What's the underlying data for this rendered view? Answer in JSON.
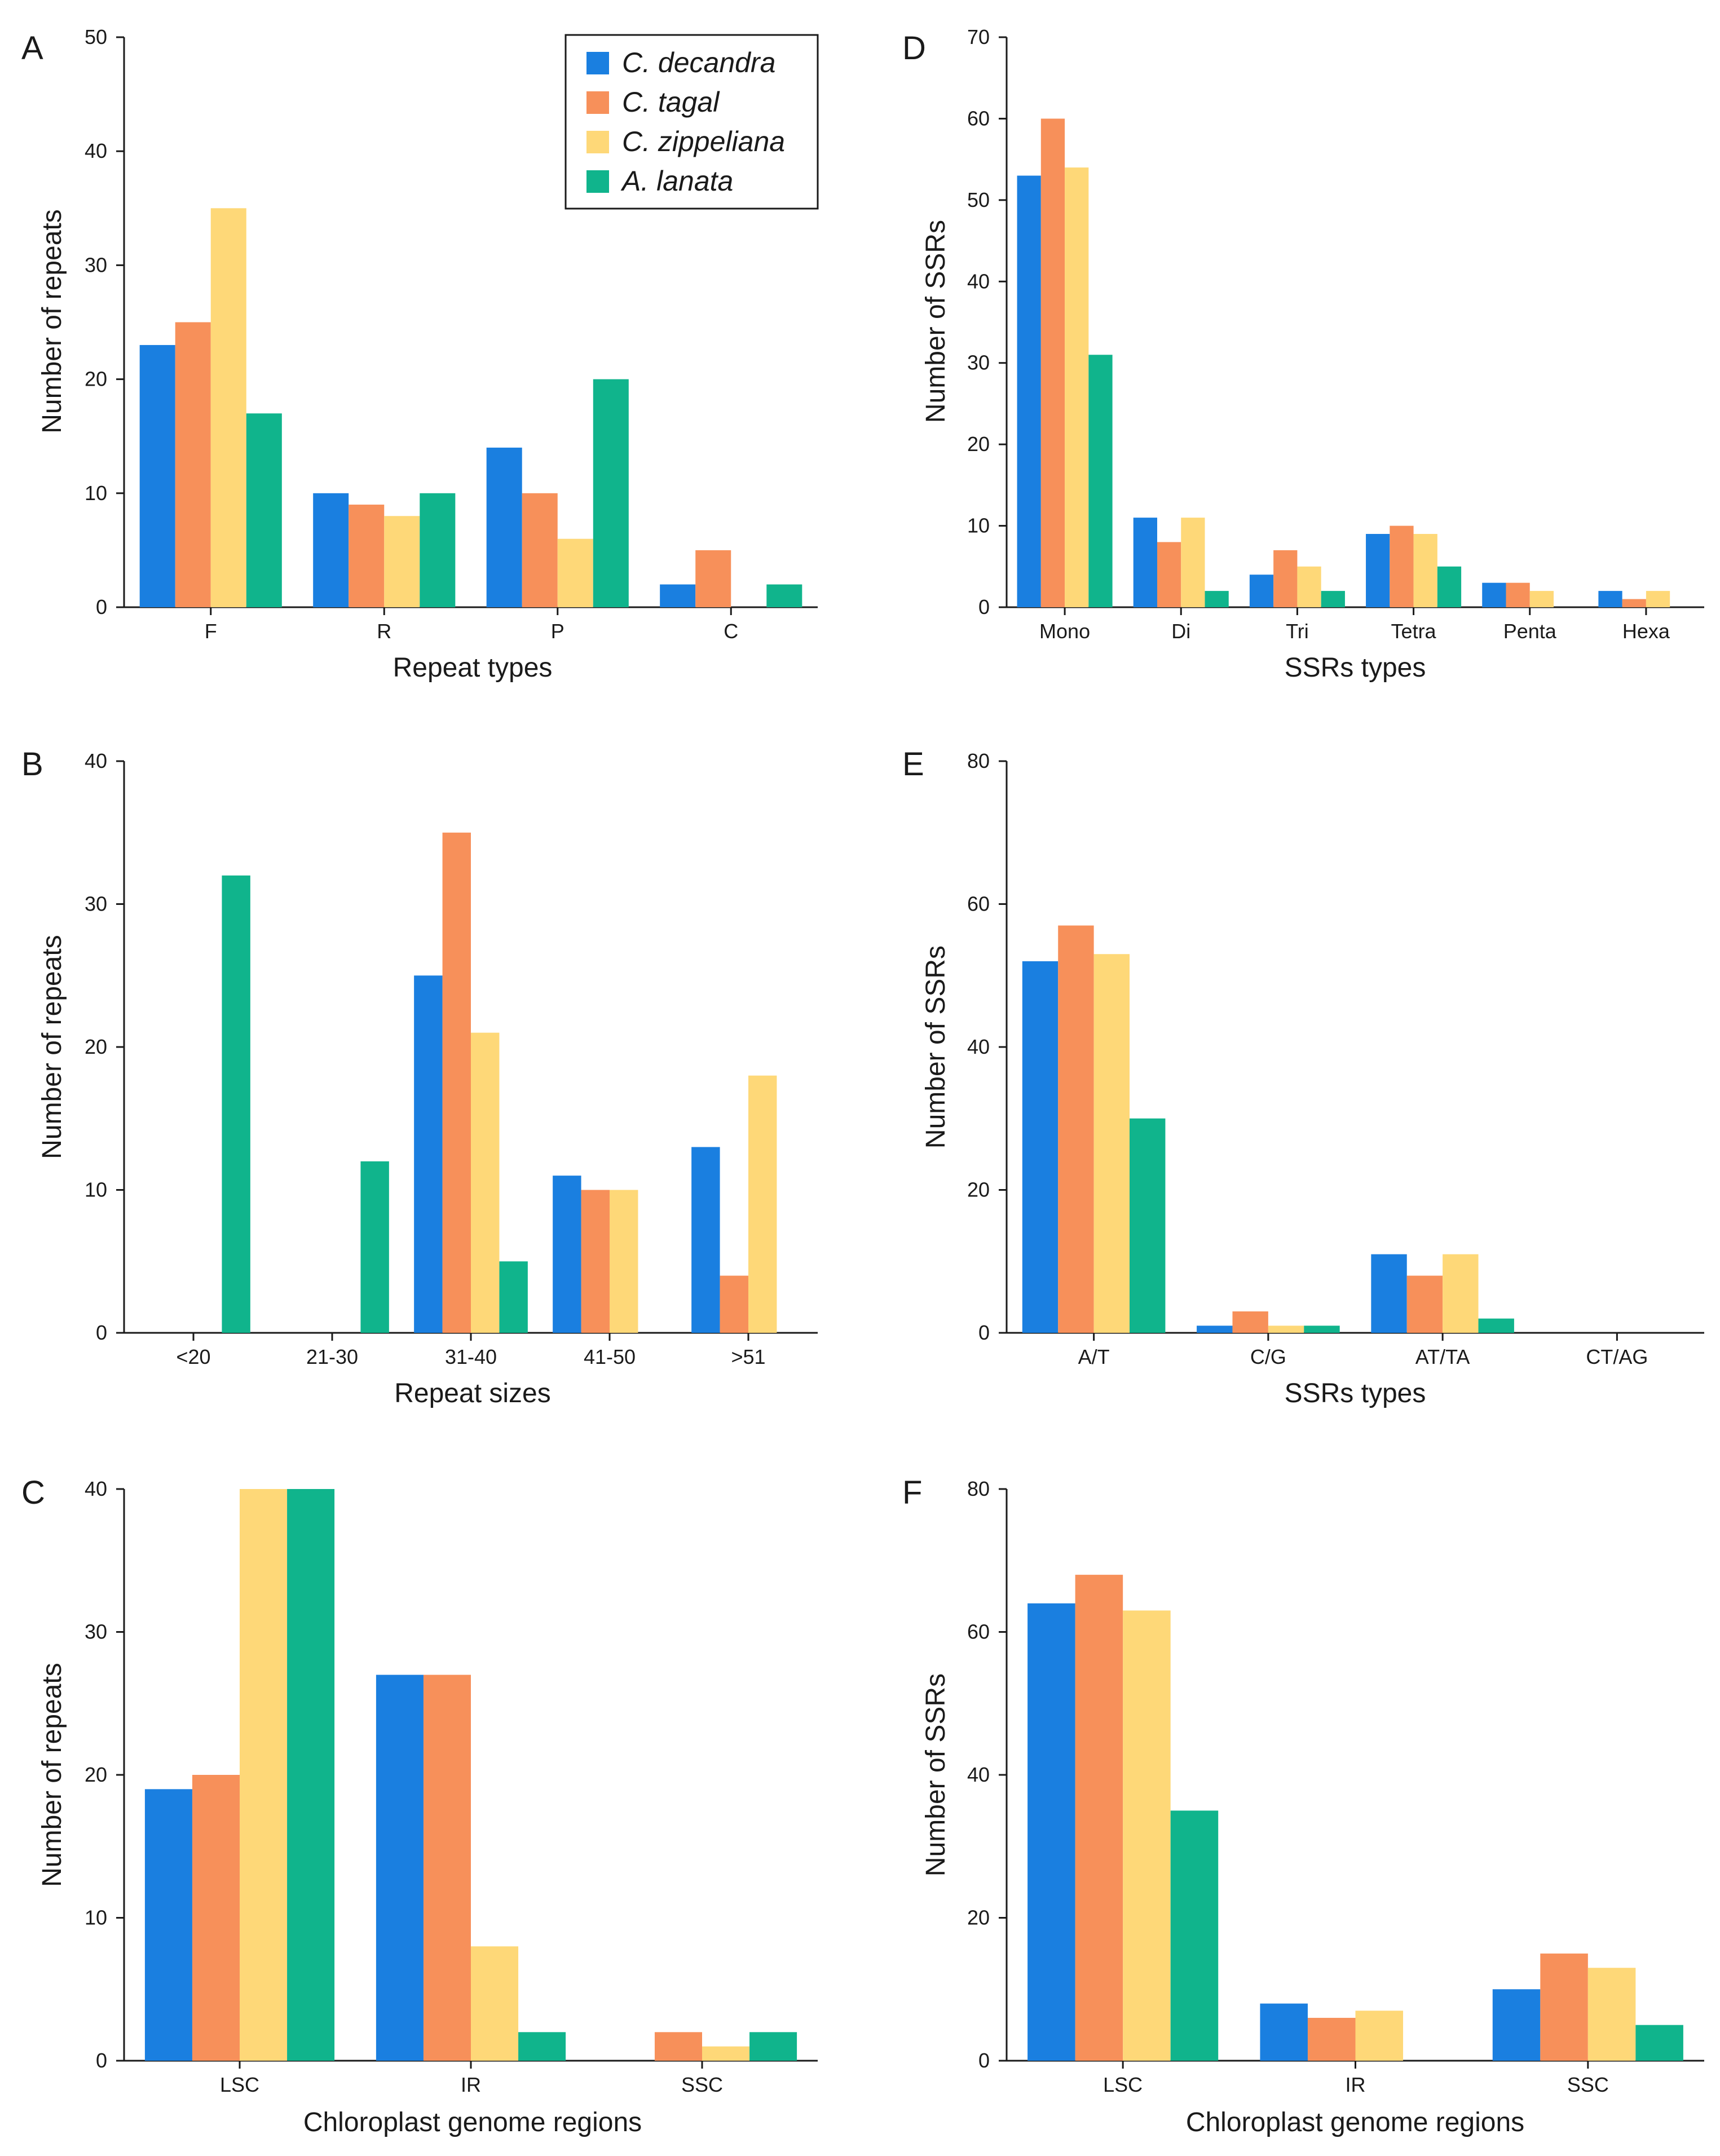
{
  "legend": [
    {
      "name": "C. decandra",
      "color": "#1a7fe0"
    },
    {
      "name": "C. tagal",
      "color": "#f7905a"
    },
    {
      "name": "C. zippeliana",
      "color": "#fed878"
    },
    {
      "name": "A. lanata",
      "color": "#10b48c"
    }
  ],
  "chart_data": [
    {
      "panel": "A",
      "type": "bar",
      "title": "",
      "xlabel": "Repeat types",
      "ylabel": "Number of repeats",
      "categories": [
        "F",
        "R",
        "P",
        "C"
      ],
      "ylim": [
        0,
        50
      ],
      "yticks": [
        "0",
        "10",
        "20",
        "30",
        "40",
        "50"
      ],
      "series": [
        {
          "name": "C. decandra",
          "values": [
            23,
            10,
            14,
            2
          ]
        },
        {
          "name": "C. tagal",
          "values": [
            25,
            9,
            10,
            5
          ]
        },
        {
          "name": "C. zippeliana",
          "values": [
            35,
            8,
            6,
            0
          ]
        },
        {
          "name": "A. lanata",
          "values": [
            17,
            10,
            20,
            2
          ]
        }
      ]
    },
    {
      "panel": "B",
      "type": "bar",
      "title": "",
      "xlabel": "Repeat sizes",
      "ylabel": "Number of repeats",
      "categories": [
        "<20",
        "21-30",
        "31-40",
        "41-50",
        ">51"
      ],
      "ylim": [
        0,
        40
      ],
      "yticks": [
        "0",
        "10",
        "20",
        "30",
        "40"
      ],
      "series": [
        {
          "name": "C. decandra",
          "values": [
            0,
            0,
            25,
            11,
            13
          ]
        },
        {
          "name": "C. tagal",
          "values": [
            0,
            0,
            35,
            10,
            4
          ]
        },
        {
          "name": "C. zippeliana",
          "values": [
            0,
            0,
            21,
            10,
            18
          ]
        },
        {
          "name": "A. lanata",
          "values": [
            32,
            12,
            5,
            0,
            0
          ]
        }
      ]
    },
    {
      "panel": "C",
      "type": "bar",
      "title": "",
      "xlabel": "Chloroplast genome regions",
      "ylabel": "Number of repeats",
      "categories": [
        "LSC",
        "IR",
        "SSC"
      ],
      "ylim": [
        0,
        40
      ],
      "yticks": [
        "0",
        "10",
        "20",
        "30",
        "40"
      ],
      "series": [
        {
          "name": "C. decandra",
          "values": [
            19,
            27,
            0
          ]
        },
        {
          "name": "C. tagal",
          "values": [
            20,
            27,
            2
          ]
        },
        {
          "name": "C. zippeliana",
          "values": [
            40,
            8,
            1
          ]
        },
        {
          "name": "A. lanata",
          "values": [
            40,
            2,
            2
          ]
        }
      ]
    },
    {
      "panel": "D",
      "type": "bar",
      "title": "",
      "xlabel": "SSRs types",
      "ylabel": "Number of SSRs",
      "categories": [
        "Mono",
        "Di",
        "Tri",
        "Tetra",
        "Penta",
        "Hexa"
      ],
      "ylim": [
        0,
        70
      ],
      "yticks": [
        "0",
        "10",
        "20",
        "30",
        "40",
        "50",
        "60",
        "70"
      ],
      "series": [
        {
          "name": "C. decandra",
          "values": [
            53,
            11,
            4,
            9,
            3,
            2
          ]
        },
        {
          "name": "C. tagal",
          "values": [
            60,
            8,
            7,
            10,
            3,
            1
          ]
        },
        {
          "name": "C. zippeliana",
          "values": [
            54,
            11,
            5,
            9,
            2,
            2
          ]
        },
        {
          "name": "A. lanata",
          "values": [
            31,
            2,
            2,
            5,
            0,
            0
          ]
        }
      ]
    },
    {
      "panel": "E",
      "type": "bar",
      "title": "",
      "xlabel": "SSRs types",
      "ylabel": "Number of SSRs",
      "categories": [
        "A/T",
        "C/G",
        "AT/TA",
        "CT/AG"
      ],
      "ylim": [
        0,
        80
      ],
      "yticks": [
        "0",
        "20",
        "40",
        "60",
        "80"
      ],
      "series": [
        {
          "name": "C. decandra",
          "values": [
            52,
            1,
            11,
            0
          ]
        },
        {
          "name": "C. tagal",
          "values": [
            57,
            3,
            8,
            0
          ]
        },
        {
          "name": "C. zippeliana",
          "values": [
            53,
            1,
            11,
            0
          ]
        },
        {
          "name": "A. lanata",
          "values": [
            30,
            1,
            2,
            0
          ]
        }
      ]
    },
    {
      "panel": "F",
      "type": "bar",
      "title": "",
      "xlabel": "Chloroplast genome regions",
      "ylabel": "Number of SSRs",
      "categories": [
        "LSC",
        "IR",
        "SSC"
      ],
      "ylim": [
        0,
        80
      ],
      "yticks": [
        "0",
        "20",
        "40",
        "60",
        "80"
      ],
      "series": [
        {
          "name": "C. decandra",
          "values": [
            64,
            8,
            10
          ]
        },
        {
          "name": "C. tagal",
          "values": [
            68,
            6,
            15
          ]
        },
        {
          "name": "C. zippeliana",
          "values": [
            63,
            7,
            13
          ]
        },
        {
          "name": "A. lanata",
          "values": [
            35,
            0,
            5
          ]
        }
      ]
    }
  ]
}
